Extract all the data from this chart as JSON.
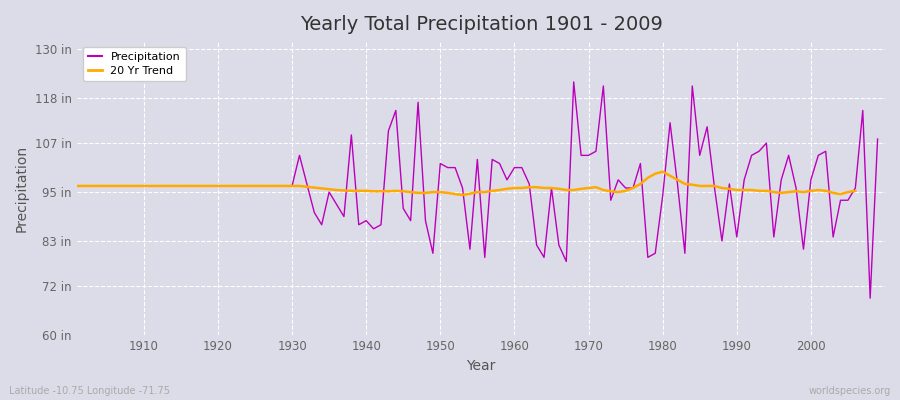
{
  "title": "Yearly Total Precipitation 1901 - 2009",
  "xlabel": "Year",
  "ylabel": "Precipitation",
  "bg_color": "#dcdce8",
  "plot_bg_color": "#dcdce8",
  "precip_color": "#bb00bb",
  "trend_color": "#ffaa00",
  "precip_label": "Precipitation",
  "trend_label": "20 Yr Trend",
  "ylim": [
    60,
    132
  ],
  "yticks": [
    60,
    72,
    83,
    95,
    107,
    118,
    130
  ],
  "ytick_labels": [
    "60 in",
    "72 in",
    "83 in",
    "95 in",
    "107 in",
    "118 in",
    "130 in"
  ],
  "xlim": [
    1901,
    2010
  ],
  "xticks": [
    1910,
    1920,
    1930,
    1940,
    1950,
    1960,
    1970,
    1980,
    1990,
    2000
  ],
  "footer_left": "Latitude -10.75 Longitude -71.75",
  "footer_right": "worldspecies.org",
  "years": [
    1901,
    1902,
    1903,
    1904,
    1905,
    1906,
    1907,
    1908,
    1909,
    1910,
    1911,
    1912,
    1913,
    1914,
    1915,
    1916,
    1917,
    1918,
    1919,
    1920,
    1921,
    1922,
    1923,
    1924,
    1925,
    1926,
    1927,
    1928,
    1929,
    1930,
    1931,
    1932,
    1933,
    1934,
    1935,
    1936,
    1937,
    1938,
    1939,
    1940,
    1941,
    1942,
    1943,
    1944,
    1945,
    1946,
    1947,
    1948,
    1949,
    1950,
    1951,
    1952,
    1953,
    1954,
    1955,
    1956,
    1957,
    1958,
    1959,
    1960,
    1961,
    1962,
    1963,
    1964,
    1965,
    1966,
    1967,
    1968,
    1969,
    1970,
    1971,
    1972,
    1973,
    1974,
    1975,
    1976,
    1977,
    1978,
    1979,
    1980,
    1981,
    1982,
    1983,
    1984,
    1985,
    1986,
    1987,
    1988,
    1989,
    1990,
    1991,
    1992,
    1993,
    1994,
    1995,
    1996,
    1997,
    1998,
    1999,
    2000,
    2001,
    2002,
    2003,
    2004,
    2005,
    2006,
    2007,
    2008,
    2009
  ],
  "precip": [
    96.5,
    96.5,
    96.5,
    96.5,
    96.5,
    96.5,
    96.5,
    96.5,
    96.5,
    96.5,
    96.5,
    96.5,
    96.5,
    96.5,
    96.5,
    96.5,
    96.5,
    96.5,
    96.5,
    96.5,
    96.5,
    96.5,
    96.5,
    96.5,
    96.5,
    96.5,
    96.5,
    96.5,
    96.5,
    96.5,
    104,
    97,
    90,
    87,
    95,
    92,
    89,
    109,
    87,
    88,
    86,
    87,
    110,
    115,
    91,
    88,
    117,
    88,
    80,
    102,
    101,
    101,
    96,
    81,
    103,
    79,
    103,
    102,
    98,
    101,
    101,
    97,
    82,
    79,
    96,
    82,
    78,
    122,
    104,
    104,
    105,
    121,
    93,
    98,
    96,
    96,
    102,
    79,
    80,
    94,
    112,
    97,
    80,
    121,
    104,
    111,
    96,
    83,
    97,
    84,
    98,
    104,
    105,
    107,
    84,
    98,
    104,
    96,
    81,
    98,
    104,
    105,
    84,
    93,
    93,
    96,
    115,
    69,
    108
  ],
  "trend": [
    96.5,
    96.5,
    96.5,
    96.5,
    96.5,
    96.5,
    96.5,
    96.5,
    96.5,
    96.5,
    96.5,
    96.5,
    96.5,
    96.5,
    96.5,
    96.5,
    96.5,
    96.5,
    96.5,
    96.5,
    96.5,
    96.5,
    96.5,
    96.5,
    96.5,
    96.5,
    96.5,
    96.5,
    96.5,
    96.5,
    96.5,
    96.3,
    96.1,
    95.9,
    95.7,
    95.5,
    95.4,
    95.3,
    95.3,
    95.3,
    95.2,
    95.2,
    95.2,
    95.3,
    95.2,
    95.0,
    94.8,
    94.8,
    95.0,
    95.0,
    94.8,
    94.5,
    94.3,
    94.6,
    95.0,
    95.0,
    95.3,
    95.5,
    95.8,
    96.0,
    96.0,
    96.2,
    96.2,
    96.0,
    96.0,
    95.8,
    95.5,
    95.5,
    95.8,
    96.0,
    96.2,
    95.5,
    95.2,
    95.0,
    95.3,
    96.0,
    97.0,
    98.5,
    99.5,
    100.0,
    99.0,
    98.0,
    97.0,
    96.8,
    96.5,
    96.5,
    96.5,
    96.0,
    95.8,
    95.5,
    95.5,
    95.5,
    95.3,
    95.3,
    95.0,
    94.8,
    95.0,
    95.2,
    95.0,
    95.3,
    95.5,
    95.3,
    94.8,
    94.5,
    95.0,
    95.3,
    null,
    null,
    null
  ]
}
